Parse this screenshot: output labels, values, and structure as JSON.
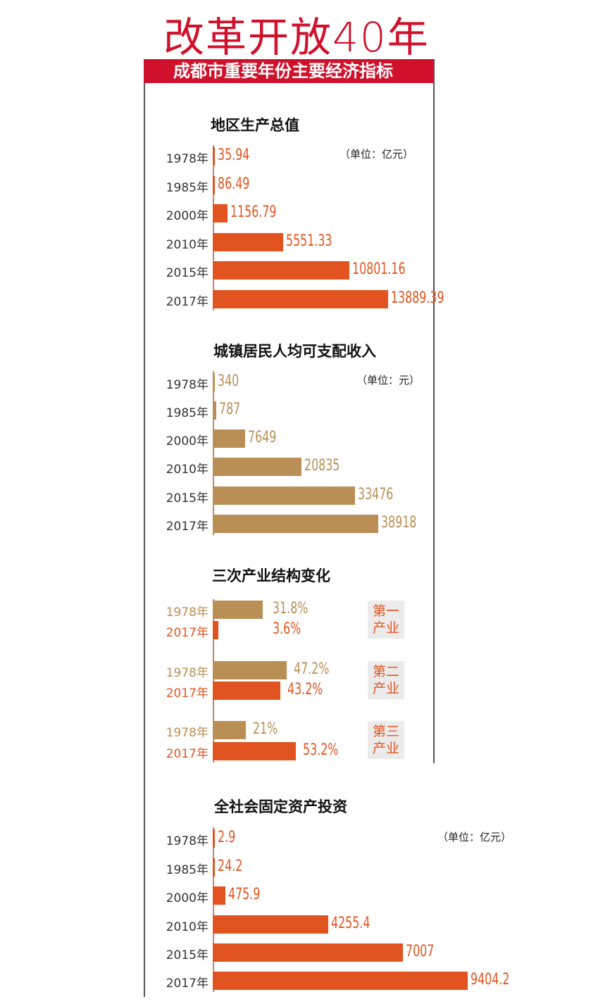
{
  "header": {
    "title": "改革开放40年",
    "subtitle": "成都市重要年份主要经济指标"
  },
  "colors": {
    "red": "#d0112b",
    "orange": "#e2541f",
    "tan": "#b98f55"
  },
  "chart_data": [
    {
      "type": "bar",
      "title": "地区生产总值",
      "unit": "（单位：亿元）",
      "categories": [
        "1978年",
        "1985年",
        "2000年",
        "2010年",
        "2015年",
        "2017年"
      ],
      "values": [
        35.94,
        86.49,
        1156.79,
        5551.33,
        10801.16,
        13889.39
      ],
      "labels": [
        "35.94",
        "86.49",
        "1156.79",
        "5551.33",
        "10801.16",
        "13889.39"
      ]
    },
    {
      "type": "bar",
      "title": "城镇居民人均可支配收入",
      "unit": "（单位：元）",
      "categories": [
        "1978年",
        "1985年",
        "2000年",
        "2010年",
        "2015年",
        "2017年"
      ],
      "values": [
        340,
        787,
        7649,
        20835,
        33476,
        38918
      ],
      "labels": [
        "340",
        "787",
        "7649",
        "20835",
        "33476",
        "38918"
      ]
    },
    {
      "type": "bar",
      "title": "三次产业结构变化",
      "groups": [
        {
          "name_line1": "第一",
          "name_line2": "产业",
          "series": [
            {
              "year": "1978年",
              "value": 31.8,
              "label": "31.8%"
            },
            {
              "year": "2017年",
              "value": 3.6,
              "label": "3.6%"
            }
          ]
        },
        {
          "name_line1": "第二",
          "name_line2": "产业",
          "series": [
            {
              "year": "1978年",
              "value": 47.2,
              "label": "47.2%"
            },
            {
              "year": "2017年",
              "value": 43.2,
              "label": "43.2%"
            }
          ]
        },
        {
          "name_line1": "第三",
          "name_line2": "产业",
          "series": [
            {
              "year": "1978年",
              "value": 21,
              "label": "21%"
            },
            {
              "year": "2017年",
              "value": 53.2,
              "label": "53.2%"
            }
          ]
        }
      ]
    },
    {
      "type": "bar",
      "title": "全社会固定资产投资",
      "unit": "（单位：亿元）",
      "categories": [
        "1978年",
        "1985年",
        "2000年",
        "2010年",
        "2015年",
        "2017年"
      ],
      "values": [
        2.9,
        24.2,
        475.9,
        4255.4,
        7007,
        9404.2
      ],
      "labels": [
        "2.9",
        "24.2",
        "475.9",
        "4255.4",
        "7007",
        "9404.2"
      ]
    }
  ]
}
